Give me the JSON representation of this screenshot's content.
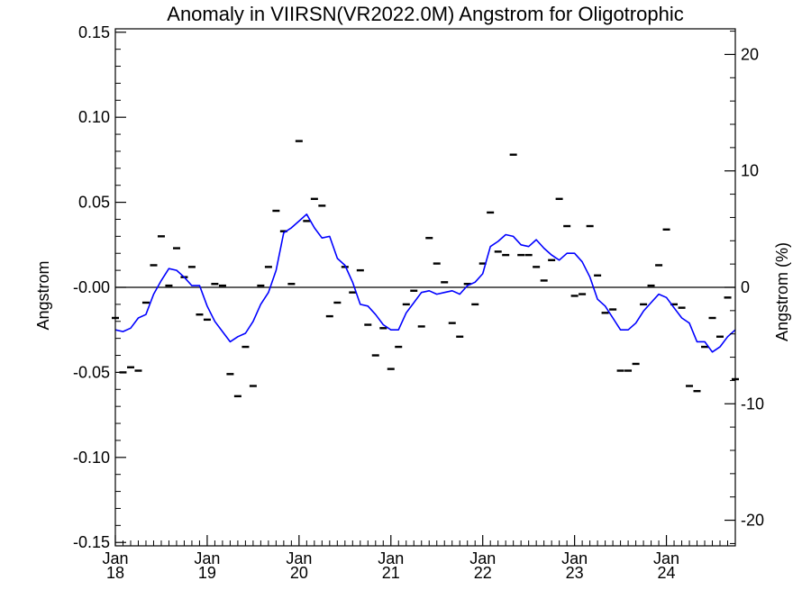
{
  "chart_data": {
    "type": "line",
    "title": "Anomaly in VIIRSN(VR2022.0M) Angstrom for Oligotrophic",
    "xlabel": "",
    "ylabel": "Angstrom",
    "y2label": "Angstrom (%)",
    "xlim": [
      2018.0,
      2024.75
    ],
    "ylim": [
      -0.152,
      0.152
    ],
    "y2lim": [
      -22.2,
      22.2
    ],
    "y_ticks": [
      "0.15",
      "0.10",
      "0.05",
      "-0.00",
      "-0.05",
      "-0.10",
      "-0.15"
    ],
    "y_tick_values": [
      0.15,
      0.1,
      0.05,
      0.0,
      -0.05,
      -0.1,
      -0.15
    ],
    "y2_ticks": [
      "20",
      "10",
      "0",
      "-10",
      "-20"
    ],
    "y2_tick_values": [
      20,
      10,
      0,
      -10,
      -20
    ],
    "x_ticks": [
      {
        "month": "Jan",
        "year": "18",
        "x": 2018.0
      },
      {
        "month": "Jan",
        "year": "19",
        "x": 2019.0
      },
      {
        "month": "Jan",
        "year": "20",
        "x": 2020.0
      },
      {
        "month": "Jan",
        "year": "21",
        "x": 2021.0
      },
      {
        "month": "Jan",
        "year": "22",
        "x": 2022.0
      },
      {
        "month": "Jan",
        "year": "23",
        "x": 2023.0
      },
      {
        "month": "Jan",
        "year": "24",
        "x": 2024.0
      }
    ],
    "grid": false,
    "colors": {
      "line": "#0000ff",
      "points": "#000000",
      "zero_line": "#000000"
    },
    "series": [
      {
        "style": "dash-markers",
        "x": [
          2018.0,
          2018.083,
          2018.167,
          2018.25,
          2018.333,
          2018.417,
          2018.5,
          2018.583,
          2018.667,
          2018.75,
          2018.833,
          2018.917,
          2019.0,
          2019.083,
          2019.167,
          2019.25,
          2019.333,
          2019.417,
          2019.5,
          2019.583,
          2019.667,
          2019.75,
          2019.833,
          2019.917,
          2020.0,
          2020.083,
          2020.167,
          2020.25,
          2020.333,
          2020.417,
          2020.5,
          2020.583,
          2020.667,
          2020.75,
          2020.833,
          2020.917,
          2021.0,
          2021.083,
          2021.167,
          2021.25,
          2021.333,
          2021.417,
          2021.5,
          2021.583,
          2021.667,
          2021.75,
          2021.833,
          2021.917,
          2022.0,
          2022.083,
          2022.167,
          2022.25,
          2022.333,
          2022.417,
          2022.5,
          2022.583,
          2022.667,
          2022.75,
          2022.833,
          2022.917,
          2023.0,
          2023.083,
          2023.167,
          2023.25,
          2023.333,
          2023.417,
          2023.5,
          2023.583,
          2023.667,
          2023.75,
          2023.833,
          2023.917,
          2024.0,
          2024.083,
          2024.167,
          2024.25,
          2024.333,
          2024.417,
          2024.5,
          2024.583,
          2024.667,
          2024.75
        ],
        "y": [
          -0.018,
          -0.05,
          -0.047,
          -0.049,
          -0.009,
          0.013,
          0.03,
          0.001,
          0.023,
          0.006,
          0.012,
          -0.016,
          -0.019,
          0.002,
          0.001,
          -0.051,
          -0.064,
          -0.035,
          -0.058,
          0.001,
          0.012,
          0.045,
          0.033,
          0.002,
          0.086,
          0.039,
          0.052,
          0.048,
          -0.017,
          -0.009,
          0.012,
          -0.003,
          0.01,
          -0.022,
          -0.04,
          -0.024,
          -0.048,
          -0.035,
          -0.01,
          -0.002,
          -0.023,
          0.029,
          0.014,
          0.003,
          -0.021,
          -0.029,
          0.002,
          -0.01,
          0.014,
          0.044,
          0.021,
          0.019,
          0.078,
          0.019,
          0.019,
          0.012,
          0.004,
          0.016,
          0.052,
          0.036,
          -0.005,
          -0.004,
          0.036,
          0.007,
          -0.015,
          -0.013,
          -0.049,
          -0.049,
          -0.045,
          -0.01,
          0.001,
          0.013,
          0.034,
          -0.01,
          -0.012,
          -0.058,
          -0.061,
          -0.035,
          -0.018,
          -0.029,
          -0.006,
          -0.054
        ]
      },
      {
        "style": "line",
        "x": [
          2018.0,
          2018.083,
          2018.167,
          2018.25,
          2018.333,
          2018.417,
          2018.5,
          2018.583,
          2018.667,
          2018.75,
          2018.833,
          2018.917,
          2019.0,
          2019.083,
          2019.167,
          2019.25,
          2019.333,
          2019.417,
          2019.5,
          2019.583,
          2019.667,
          2019.75,
          2019.833,
          2019.917,
          2020.0,
          2020.083,
          2020.167,
          2020.25,
          2020.333,
          2020.417,
          2020.5,
          2020.583,
          2020.667,
          2020.75,
          2020.833,
          2020.917,
          2021.0,
          2021.083,
          2021.167,
          2021.25,
          2021.333,
          2021.417,
          2021.5,
          2021.583,
          2021.667,
          2021.75,
          2021.833,
          2021.917,
          2022.0,
          2022.083,
          2022.167,
          2022.25,
          2022.333,
          2022.417,
          2022.5,
          2022.583,
          2022.667,
          2022.75,
          2022.833,
          2022.917,
          2023.0,
          2023.083,
          2023.167,
          2023.25,
          2023.333,
          2023.417,
          2023.5,
          2023.583,
          2023.667,
          2023.75,
          2023.833,
          2023.917,
          2024.0,
          2024.083,
          2024.167,
          2024.25,
          2024.333,
          2024.417,
          2024.5,
          2024.583,
          2024.667,
          2024.75
        ],
        "y": [
          -0.025,
          -0.026,
          -0.024,
          -0.018,
          -0.016,
          -0.004,
          0.004,
          0.011,
          0.01,
          0.006,
          0.001,
          0.001,
          -0.011,
          -0.02,
          -0.026,
          -0.032,
          -0.029,
          -0.027,
          -0.02,
          -0.01,
          -0.003,
          0.01,
          0.032,
          0.035,
          0.039,
          0.043,
          0.035,
          0.029,
          0.03,
          0.017,
          0.013,
          0.003,
          -0.01,
          -0.011,
          -0.016,
          -0.022,
          -0.025,
          -0.025,
          -0.015,
          -0.009,
          -0.003,
          -0.002,
          -0.004,
          -0.003,
          -0.002,
          -0.004,
          0.001,
          0.003,
          0.008,
          0.024,
          0.027,
          0.031,
          0.03,
          0.025,
          0.024,
          0.028,
          0.023,
          0.019,
          0.016,
          0.02,
          0.02,
          0.015,
          0.006,
          -0.007,
          -0.011,
          -0.018,
          -0.025,
          -0.025,
          -0.021,
          -0.014,
          -0.009,
          -0.004,
          -0.006,
          -0.012,
          -0.018,
          -0.021,
          -0.032,
          -0.032,
          -0.038,
          -0.035,
          -0.029,
          -0.025
        ]
      }
    ]
  }
}
